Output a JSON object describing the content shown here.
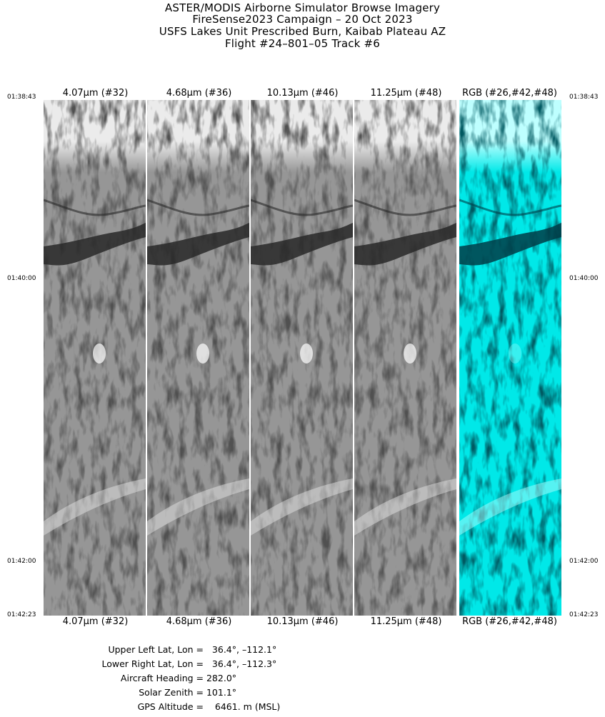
{
  "header": {
    "line1": "ASTER/MODIS Airborne Simulator Browse Imagery",
    "line2": "FireSense2023 Campaign – 20 Oct 2023",
    "line3": "USFS Lakes Unit Prescribed Burn, Kaibab Plateau AZ",
    "line4": "Flight #24–801–05 Track #6"
  },
  "bands": [
    {
      "label": "4.07μm (#32)",
      "type": "grayscale"
    },
    {
      "label": "4.68μm (#36)",
      "type": "grayscale"
    },
    {
      "label": "10.13μm (#46)",
      "type": "grayscale"
    },
    {
      "label": "11.25μm (#48)",
      "type": "grayscale"
    },
    {
      "label": "RGB (#26,#42,#48)",
      "type": "rgb"
    }
  ],
  "times": {
    "start": "01:38:43",
    "mid1": "01:40:00",
    "mid2": "01:42:00",
    "end": "01:42:23"
  },
  "info": {
    "upper_left_label": "Upper Left Lat, Lon =",
    "upper_left_value": "36.4°, –112.1°",
    "lower_right_label": "Lower Right Lat, Lon =",
    "lower_right_value": "36.4°, –112.3°",
    "heading_label": "Aircraft Heading =",
    "heading_value": "282.0°",
    "zenith_label": "Solar Zenith =",
    "zenith_value": "101.1°",
    "altitude_label": "GPS Altitude =",
    "altitude_value": "6461. m (MSL)"
  },
  "colors": {
    "rgb_tint": "#00e8e8"
  }
}
